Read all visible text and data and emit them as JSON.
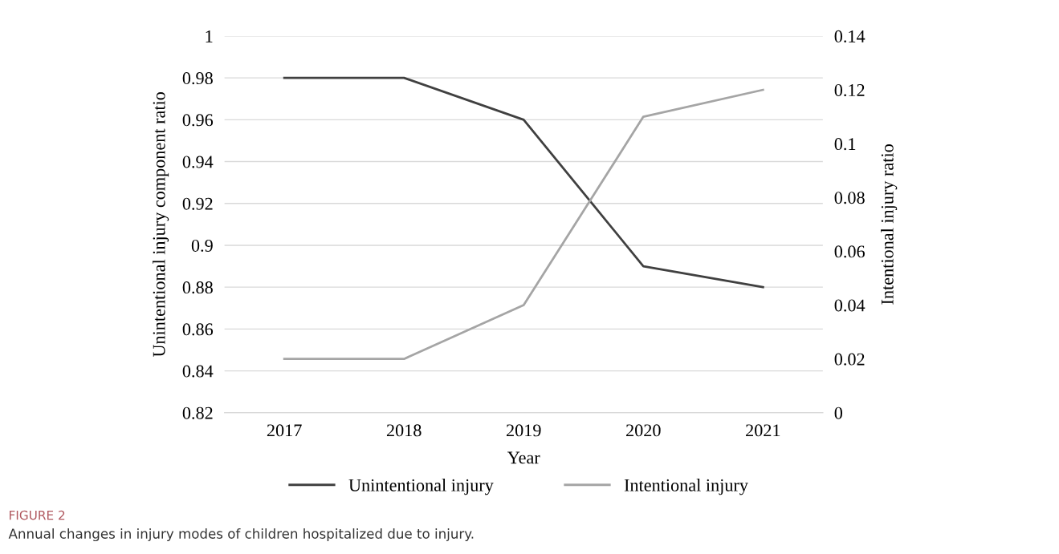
{
  "chart_data": {
    "type": "line",
    "xlabel": "Year",
    "ylabel": "Unintentional injury component ratio",
    "y2label": "Intentional injury ratio",
    "categories": [
      "2017",
      "2018",
      "2019",
      "2020",
      "2021"
    ],
    "series": [
      {
        "name": "Unintentional injury",
        "color": "#404040",
        "values": [
          0.98,
          0.98,
          0.96,
          0.89,
          0.88
        ]
      },
      {
        "name": "Intentional injury",
        "color": "#a5a5a5",
        "axis": "y2",
        "values": [
          0.02,
          0.02,
          0.04,
          0.11,
          0.12
        ]
      }
    ],
    "ylim": [
      0.82,
      1
    ],
    "yticks": [
      0.82,
      0.84,
      0.86,
      0.88,
      0.9,
      0.92,
      0.94,
      0.96,
      0.98,
      1
    ],
    "y2lim": [
      0,
      0.14
    ],
    "y2ticks": [
      0,
      0.02,
      0.04,
      0.06,
      0.08,
      0.1,
      0.12,
      0.14
    ],
    "grid": "y",
    "legend": "bottom",
    "marker": "none",
    "line_style": "solid",
    "annotations": [
      "FIGURE 2",
      "Annual changes in injury modes of children hospitalized due to injury."
    ]
  }
}
